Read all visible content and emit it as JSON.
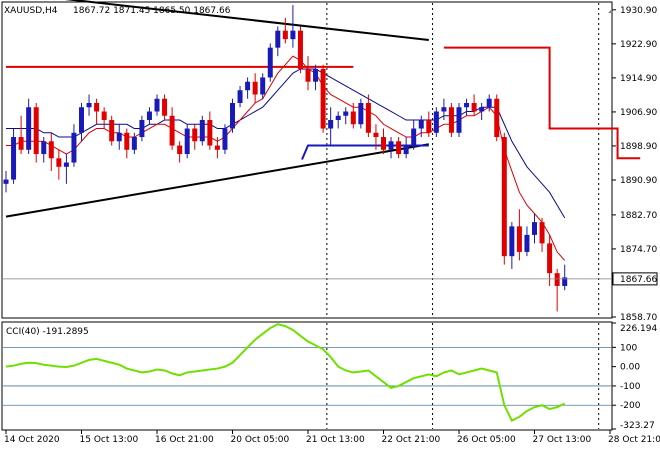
{
  "header": {
    "symbol": "XAUUSD,H4",
    "ohlc": "1867.72 1871.45 1865.50 1867.66"
  },
  "indicator": {
    "label": "CCI(40) -191.2895"
  },
  "colors": {
    "bull": "#1a1ab8",
    "bear": "#e00000",
    "ma_fast": "#e00000",
    "ma_slow": "#0a0a8c",
    "cci": "#6fe000",
    "trend": "#000000",
    "grid": "#000000",
    "level_line": "#4a7a9a",
    "price_box": "#ffffff"
  },
  "chart_data": [
    {
      "type": "candlestick",
      "title": "XAUUSD,H4",
      "y_ticks": [
        "1930.90",
        "1922.90",
        "1914.90",
        "1906.90",
        "1898.90",
        "1890.90",
        "1882.70",
        "1874.70",
        "1858.70"
      ],
      "y_range": [
        1858.7,
        1932.5
      ],
      "current_price": "1867.66",
      "x_ticks": [
        "14 Oct 2020",
        "15 Oct 13:00",
        "16 Oct 21:00",
        "20 Oct 05:00",
        "21 Oct 13:00",
        "22 Oct 21:00",
        "26 Oct 05:00",
        "27 Oct 13:00",
        "28 Oct 21:00"
      ],
      "x_tick_index": [
        0,
        10,
        20,
        30,
        40,
        50,
        60,
        70,
        80
      ],
      "candles_ohlc": [
        [
          1890,
          1893,
          1888,
          1891
        ],
        [
          1891,
          1903,
          1890,
          1901
        ],
        [
          1901,
          1906,
          1897,
          1898
        ],
        [
          1898,
          1910,
          1897,
          1908
        ],
        [
          1908,
          1909,
          1895,
          1897
        ],
        [
          1897,
          1901,
          1895,
          1900
        ],
        [
          1900,
          1902,
          1893,
          1896
        ],
        [
          1896,
          1898,
          1891,
          1894
        ],
        [
          1894,
          1897,
          1890,
          1895
        ],
        [
          1895,
          1904,
          1894,
          1902
        ],
        [
          1902,
          1909,
          1900,
          1908
        ],
        [
          1908,
          1911,
          1906,
          1909
        ],
        [
          1909,
          1910,
          1904,
          1907
        ],
        [
          1907,
          1908,
          1903,
          1905
        ],
        [
          1905,
          1906,
          1899,
          1900
        ],
        [
          1900,
          1904,
          1898,
          1902
        ],
        [
          1902,
          1903,
          1896,
          1898
        ],
        [
          1898,
          1902,
          1897,
          1901
        ],
        [
          1901,
          1906,
          1900,
          1905
        ],
        [
          1905,
          1908,
          1904,
          1907
        ],
        [
          1907,
          1911,
          1906,
          1910
        ],
        [
          1910,
          1911,
          1905,
          1906
        ],
        [
          1906,
          1908,
          1898,
          1899
        ],
        [
          1899,
          1900,
          1895,
          1897
        ],
        [
          1897,
          1904,
          1896,
          1903
        ],
        [
          1903,
          1904,
          1898,
          1900
        ],
        [
          1900,
          1906,
          1899,
          1905
        ],
        [
          1905,
          1907,
          1898,
          1899
        ],
        [
          1899,
          1901,
          1896,
          1898
        ],
        [
          1898,
          1904,
          1897,
          1903
        ],
        [
          1903,
          1910,
          1902,
          1909
        ],
        [
          1909,
          1913,
          1908,
          1912
        ],
        [
          1912,
          1915,
          1910,
          1914
        ],
        [
          1914,
          1916,
          1909,
          1911
        ],
        [
          1911,
          1916,
          1910,
          1915
        ],
        [
          1915,
          1923,
          1914,
          1922
        ],
        [
          1922,
          1927,
          1920,
          1926
        ],
        [
          1926,
          1929,
          1923,
          1924
        ],
        [
          1924,
          1932,
          1922,
          1926
        ],
        [
          1926,
          1927,
          1916,
          1917
        ],
        [
          1917,
          1920,
          1912,
          1914
        ],
        [
          1914,
          1918,
          1912,
          1917
        ],
        [
          1917,
          1918,
          1902,
          1903
        ],
        [
          1903,
          1908,
          1899,
          1905
        ],
        [
          1905,
          1907,
          1903,
          1906
        ],
        [
          1906,
          1908,
          1904,
          1907
        ],
        [
          1907,
          1909,
          1903,
          1904
        ],
        [
          1904,
          1910,
          1903,
          1909
        ],
        [
          1909,
          1911,
          1901,
          1902
        ],
        [
          1902,
          1904,
          1898,
          1901
        ],
        [
          1901,
          1903,
          1897,
          1898
        ],
        [
          1898,
          1901,
          1896,
          1900
        ],
        [
          1900,
          1901,
          1896,
          1897
        ],
        [
          1897,
          1901,
          1896,
          1899
        ],
        [
          1899,
          1905,
          1898,
          1903
        ],
        [
          1903,
          1906,
          1901,
          1905
        ],
        [
          1905,
          1907,
          1901,
          1902
        ],
        [
          1902,
          1908,
          1901,
          1907
        ],
        [
          1907,
          1910,
          1905,
          1908
        ],
        [
          1908,
          1909,
          1901,
          1902
        ],
        [
          1902,
          1909,
          1901,
          1908
        ],
        [
          1908,
          1910,
          1906,
          1909
        ],
        [
          1909,
          1911,
          1906,
          1907
        ],
        [
          1907,
          1909,
          1905,
          1908
        ],
        [
          1908,
          1911,
          1907,
          1910
        ],
        [
          1910,
          1911,
          1900,
          1901
        ],
        [
          1901,
          1902,
          1871,
          1873
        ],
        [
          1873,
          1881,
          1870,
          1880
        ],
        [
          1880,
          1884,
          1872,
          1874
        ],
        [
          1874,
          1880,
          1873,
          1878
        ],
        [
          1878,
          1883,
          1876,
          1881
        ],
        [
          1881,
          1882,
          1874,
          1876
        ],
        [
          1876,
          1878,
          1866,
          1869
        ],
        [
          1869,
          1870,
          1860,
          1866
        ],
        [
          1866,
          1871,
          1865,
          1868
        ]
      ],
      "ma_fast": [
        1899,
        1899,
        1900,
        1900,
        1900,
        1900,
        1899,
        1898,
        1897,
        1898,
        1900,
        1902,
        1903,
        1903,
        1902,
        1902,
        1901,
        1901,
        1902,
        1903,
        1904,
        1904,
        1903,
        1902,
        1901,
        1901,
        1901,
        1901,
        1900,
        1901,
        1903,
        1905,
        1907,
        1909,
        1910,
        1913,
        1916,
        1918,
        1920,
        1919,
        1917,
        1916,
        1913,
        1911,
        1910,
        1909,
        1908,
        1908,
        1907,
        1906,
        1904,
        1903,
        1902,
        1901,
        1901,
        1902,
        1902,
        1903,
        1904,
        1904,
        1905,
        1906,
        1906,
        1907,
        1908,
        1906,
        1898,
        1893,
        1888,
        1885,
        1883,
        1881,
        1878,
        1874,
        1872
      ],
      "ma_slow": [
        1903,
        1903,
        1903,
        1903,
        1903,
        1902,
        1902,
        1901,
        1901,
        1901,
        1902,
        1903,
        1904,
        1904,
        1904,
        1904,
        1904,
        1903,
        1903,
        1904,
        1904,
        1905,
        1905,
        1905,
        1904,
        1904,
        1904,
        1904,
        1903,
        1903,
        1904,
        1905,
        1906,
        1907,
        1908,
        1910,
        1912,
        1914,
        1916,
        1917,
        1917,
        1917,
        1916,
        1915,
        1914,
        1913,
        1912,
        1911,
        1910,
        1909,
        1908,
        1907,
        1906,
        1905,
        1905,
        1905,
        1905,
        1905,
        1906,
        1906,
        1906,
        1907,
        1907,
        1908,
        1908,
        1908,
        1904,
        1900,
        1897,
        1894,
        1892,
        1890,
        1888,
        1885,
        1882
      ],
      "resistance_steps": [
        {
          "from": 0,
          "to": 46,
          "y": 1917.5
        },
        {
          "from": 58,
          "to": 72,
          "y": 1922.0
        },
        {
          "from": 72,
          "to": 81,
          "y": 1903.0
        },
        {
          "from": 81,
          "to": 84,
          "y": 1896.0
        }
      ],
      "support_steps": [
        {
          "from": 40,
          "to": 56,
          "y": 1899.0
        }
      ],
      "trendlines": [
        {
          "from_index": 0,
          "from_price": 1935.0,
          "to_index": 56,
          "to_price": 1923.8
        },
        {
          "from_index": 0,
          "from_price": 1882.3,
          "to_index": 56,
          "to_price": 1899.3
        }
      ],
      "session_separators": [
        42,
        56,
        78
      ]
    },
    {
      "type": "line",
      "title": "CCI(40) -191.2895",
      "y_ticks": [
        "226.194",
        "100",
        "0.00",
        "-100",
        "-200",
        "-323.27"
      ],
      "y_range": [
        -323.27,
        226.194
      ],
      "levels": [
        100,
        -100,
        -200
      ],
      "series": [
        {
          "values": [
            0,
            5,
            15,
            20,
            18,
            10,
            5,
            0,
            -2,
            5,
            20,
            35,
            40,
            30,
            20,
            10,
            -10,
            -20,
            -30,
            -25,
            -15,
            -20,
            -35,
            -45,
            -30,
            -25,
            -20,
            -15,
            -10,
            0,
            20,
            60,
            100,
            140,
            170,
            200,
            220,
            210,
            190,
            160,
            130,
            110,
            90,
            50,
            0,
            -20,
            -30,
            -25,
            -20,
            -50,
            -80,
            -110,
            -100,
            -80,
            -60,
            -50,
            -40,
            -50,
            -30,
            -20,
            -40,
            -30,
            -20,
            -10,
            -20,
            -30,
            -200,
            -280,
            -260,
            -230,
            -210,
            -200,
            -220,
            -210,
            -191.29
          ]
        }
      ]
    }
  ]
}
